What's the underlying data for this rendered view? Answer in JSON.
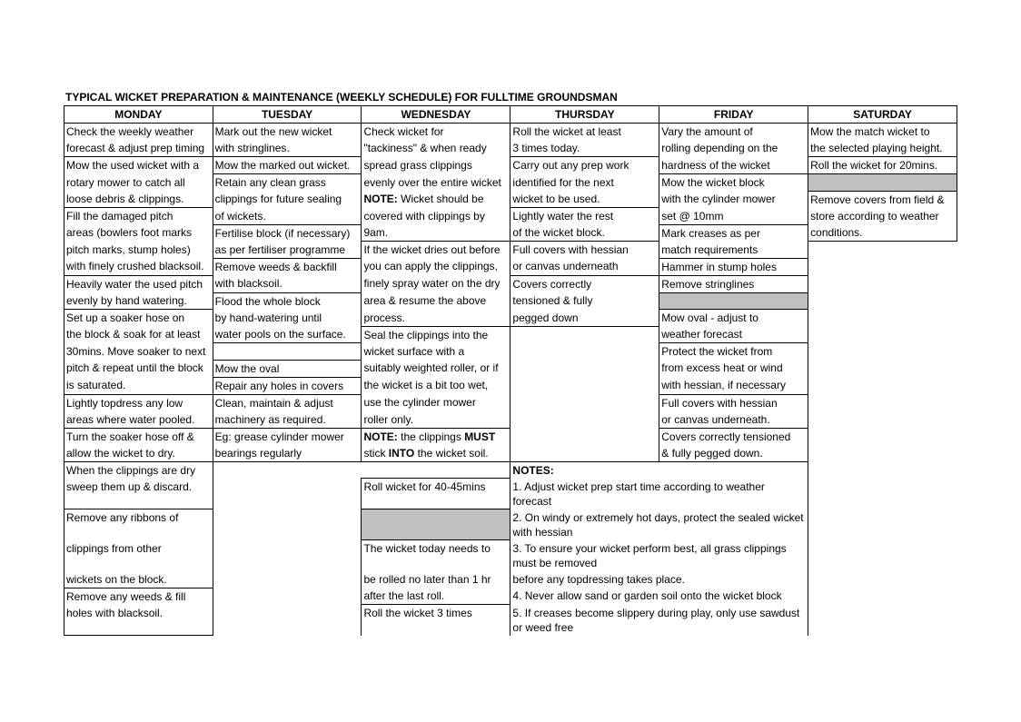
{
  "title": "TYPICAL WICKET PREPARATION & MAINTENANCE (WEEKLY SCHEDULE) FOR FULLTIME GROUNDSMAN",
  "headers": [
    "MONDAY",
    "TUESDAY",
    "WEDNESDAY",
    "THURSDAY",
    "FRIDAY",
    "SATURDAY"
  ],
  "r1": {
    "mon": "Check the weekly weather",
    "tue": "Mark out the new wicket",
    "wed": "Check wicket for",
    "thu": "Roll the wicket at least",
    "fri": "Vary the amount of",
    "sat": "Mow the match wicket to"
  },
  "r2": {
    "mon": "forecast & adjust prep timing",
    "tue": "with stringlines.",
    "wed": "\"tackiness\" & when ready",
    "thu": "3 times today.",
    "fri": "rolling depending on the",
    "sat": "the selected playing height."
  },
  "r3": {
    "mon": "Mow the used wicket with a",
    "tue": "Mow the marked out wicket.",
    "wed": "spread grass clippings",
    "thu": "Carry out any prep work",
    "fri": "hardness of the wicket",
    "sat": "Roll the wicket for 20mins."
  },
  "r4": {
    "mon": "rotary mower to catch all",
    "tue": "Retain any clean grass",
    "wed": "evenly over the entire wicket",
    "thu": "identified for the next",
    "fri": "Mow the wicket block",
    "sat": ""
  },
  "r5": {
    "mon": "loose debris & clippings.",
    "tue": "clippings for future sealing",
    "wed_prefix": "NOTE:",
    "wed": " Wicket should be",
    "thu": "wicket to be used.",
    "fri": "with the cylinder mower",
    "sat": "Remove covers from field &"
  },
  "r6": {
    "mon": "Fill the damaged pitch",
    "tue": "of wickets.",
    "wed": "covered with clippings by",
    "thu": "Lightly water the rest",
    "fri": "set @ 10mm",
    "sat": "store according to weather"
  },
  "r7": {
    "mon": "areas (bowlers foot marks",
    "tue": "Fertilise block (if necessary)",
    "wed": "9am.",
    "thu": "of the wicket block.",
    "fri": "Mark creases as per",
    "sat": "conditions."
  },
  "r8": {
    "mon": "pitch marks, stump holes)",
    "tue": "as per fertiliser programme",
    "wed": "If the wicket dries out before",
    "thu": "Full covers with hessian",
    "fri": "match requirements"
  },
  "r9": {
    "mon": "with finely crushed blacksoil.",
    "tue": "Remove weeds & backfill",
    "wed": "you can apply the clippings,",
    "thu": "or canvas underneath",
    "fri": "Hammer in stump holes"
  },
  "r10": {
    "mon": "Heavily water the used pitch",
    "tue": "with blacksoil.",
    "wed": "finely spray water on the dry",
    "thu": "Covers correctly",
    "fri": "Remove stringlines"
  },
  "r11": {
    "mon": "evenly by hand watering.",
    "tue": "Flood the whole block",
    "wed": "area & resume the above",
    "thu": "tensioned & fully",
    "fri": ""
  },
  "r12": {
    "mon": "Set up a soaker hose on",
    "tue": "by hand-watering until",
    "wed": "process.",
    "thu": "pegged down",
    "fri": "Mow oval - adjust to"
  },
  "r13": {
    "mon": "the block & soak for at least",
    "tue": "water pools on the surface.",
    "wed": "Seal the clippings into the",
    "fri": "weather forecast"
  },
  "r14": {
    "mon": "30mins. Move soaker to next",
    "wed": "wicket surface with a",
    "fri": "Protect the wicket from"
  },
  "r15": {
    "mon": "pitch & repeat until the block",
    "tue": "Mow the oval",
    "wed": "suitably weighted roller, or if",
    "fri": "from excess heat or wind"
  },
  "r16": {
    "mon": "is saturated.",
    "tue": "Repair any holes in covers",
    "wed": "the wicket is a bit too wet,",
    "fri": "with hessian, if necessary"
  },
  "r17": {
    "mon": "Lightly topdress any low",
    "tue": "Clean, maintain & adjust",
    "wed": "use the cylinder mower",
    "fri": "Full covers with hessian"
  },
  "r18": {
    "mon": "areas where water pooled.",
    "tue": "machinery as required.",
    "wed": "roller only.",
    "fri": "or canvas underneath."
  },
  "r19": {
    "mon": "Turn the soaker hose off &",
    "tue": "Eg: grease cylinder mower",
    "wed_prefix": "NOTE:",
    "wed_mid": " the clippings ",
    "wed_bold": "MUST",
    "fri": "Covers correctly tensioned"
  },
  "r20": {
    "mon": "allow the wicket to dry.",
    "tue": "bearings regularly",
    "wed_pre": "stick ",
    "wed_bold": "INTO",
    "wed_post": " the wicket soil.",
    "fri": "& fully pegged down."
  },
  "r21": {
    "mon": "When the clippings are dry",
    "notes_label": "NOTES:"
  },
  "r22": {
    "mon": "sweep them up & discard.",
    "wed": "Roll wicket for 40-45mins",
    "note": "1. Adjust wicket prep start time according to weather forecast"
  },
  "r23": {
    "mon": "Remove any ribbons of",
    "note": "2. On windy or extremely hot days, protect the sealed wicket with hessian"
  },
  "r24": {
    "mon": "clippings from other",
    "wed": "The wicket today needs to",
    "note": "3. To ensure your wicket perform best, all grass clippings must be removed"
  },
  "r25": {
    "mon": "wickets on the block.",
    "wed": "be rolled no later than 1 hr",
    "note": "before any topdressing takes place."
  },
  "r26": {
    "mon": "Remove any weeds & fill",
    "wed": "after the last roll.",
    "note": "4. Never allow sand or garden soil onto the wicket block"
  },
  "r27": {
    "mon": "holes with blacksoil.",
    "wed": "Roll the wicket 3 times",
    "note": "5. If creases become slippery during play, only use sawdust or weed free"
  }
}
